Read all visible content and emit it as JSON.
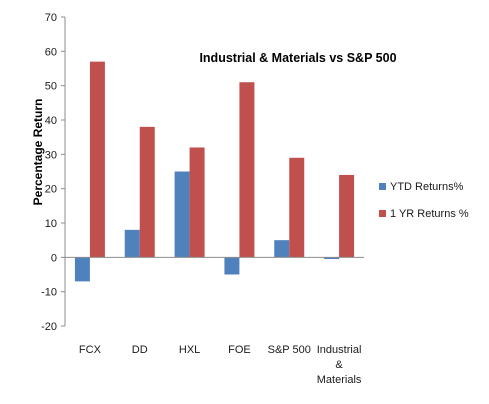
{
  "chart_data": {
    "type": "bar",
    "title": "Industrial & Materials vs S&P 500",
    "xlabel": "",
    "ylabel": "Percentage Return",
    "ylim": [
      -20,
      70
    ],
    "ytick_step": 10,
    "grid": false,
    "legend_position": "right",
    "categories": [
      [
        "FCX"
      ],
      [
        "DD"
      ],
      [
        "HXL"
      ],
      [
        "FOE"
      ],
      [
        "S&P 500"
      ],
      [
        "Industrial",
        "&",
        "Materials"
      ]
    ],
    "series": [
      {
        "name": "YTD Returns%",
        "color": "#4f81bd",
        "values": [
          -7,
          8,
          25,
          -5,
          5,
          -0.5
        ]
      },
      {
        "name": "1 YR Returns %",
        "color": "#c0504d",
        "values": [
          57,
          38,
          32,
          51,
          29,
          24
        ]
      }
    ]
  }
}
